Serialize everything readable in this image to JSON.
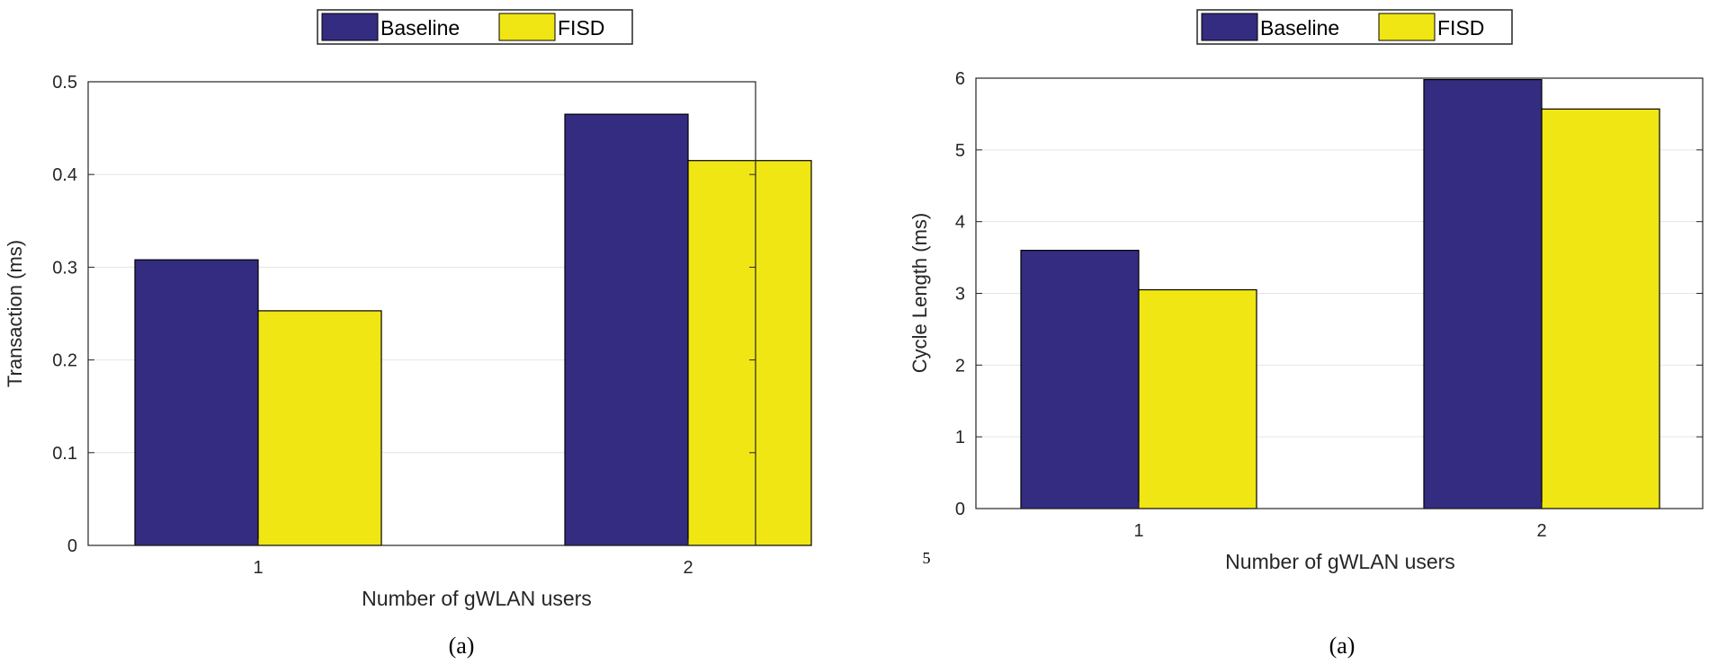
{
  "figure": {
    "page_number": "5"
  },
  "chart_data": [
    {
      "type": "bar",
      "caption": "(a)",
      "categories": [
        "1",
        "2"
      ],
      "series": [
        {
          "name": "Baseline",
          "values": [
            0.308,
            0.465
          ],
          "color": "#332c80"
        },
        {
          "name": "FISD",
          "values": [
            0.253,
            0.415
          ],
          "color": "#f0e614"
        }
      ],
      "title": "",
      "xlabel": "Number of gWLAN users",
      "ylabel": "Transaction (ms)",
      "ylim": [
        0,
        0.5
      ],
      "yticks": [
        0,
        0.1,
        0.2,
        0.3,
        0.4,
        0.5
      ],
      "ytick_labels": [
        "0",
        "0.1",
        "0.2",
        "0.3",
        "0.4",
        "0.5"
      ],
      "grid": true,
      "legend": {
        "position": "top-center",
        "orientation": "horizontal",
        "entries": [
          "Baseline",
          "FISD"
        ]
      }
    },
    {
      "type": "bar",
      "caption": "(a)",
      "categories": [
        "1",
        "2"
      ],
      "series": [
        {
          "name": "Baseline",
          "values": [
            3.6,
            5.98
          ],
          "color": "#332c80"
        },
        {
          "name": "FISD",
          "values": [
            3.05,
            5.57
          ],
          "color": "#f0e614"
        }
      ],
      "title": "",
      "xlabel": "Number of gWLAN users",
      "ylabel": "Cycle Length (ms)",
      "ylim": [
        0,
        6
      ],
      "yticks": [
        0,
        1,
        2,
        3,
        4,
        5,
        6
      ],
      "ytick_labels": [
        "0",
        "1",
        "2",
        "3",
        "4",
        "5",
        "6"
      ],
      "grid": true,
      "legend": {
        "position": "top-center",
        "orientation": "horizontal",
        "entries": [
          "Baseline",
          "FISD"
        ]
      }
    }
  ]
}
